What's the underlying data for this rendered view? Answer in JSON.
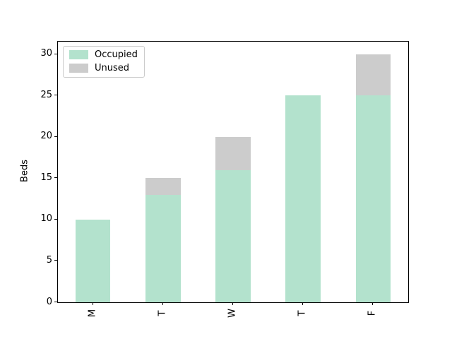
{
  "chart_data": {
    "type": "bar",
    "stacked": true,
    "title": "",
    "xlabel": "",
    "ylabel": "Beds",
    "categories": [
      "M",
      "T",
      "W",
      "T",
      "F"
    ],
    "series": [
      {
        "name": "Occupied",
        "color": "#b3e2cd",
        "values": [
          10,
          13,
          16,
          25,
          25
        ]
      },
      {
        "name": "Unused",
        "color": "#cccccc",
        "values": [
          0,
          2,
          4,
          0,
          5
        ]
      }
    ],
    "totals": [
      10,
      15,
      20,
      25,
      30
    ],
    "yticks": [
      0,
      5,
      10,
      15,
      20,
      25,
      30
    ],
    "ylim": [
      0,
      31.5
    ],
    "bar_width_ratio": 0.5,
    "legend_position": "upper left",
    "grid": false,
    "spine_color": "#000000",
    "background_color": "#ffffff"
  }
}
